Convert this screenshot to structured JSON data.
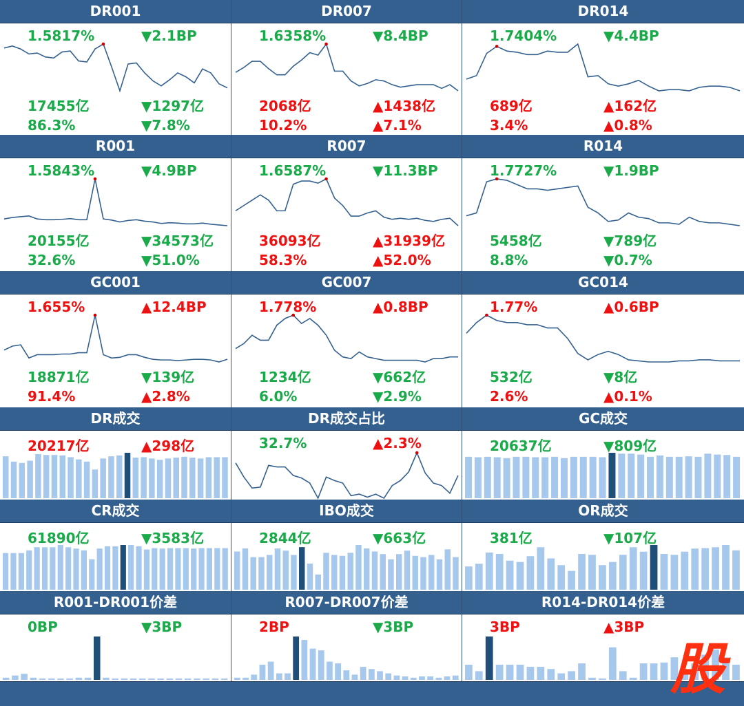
{
  "colors": {
    "up": "#ee1111",
    "down": "#1aaa4a",
    "line": "#34608f",
    "bar": "#a5c8ec",
    "bar_hl": "#1f4e79",
    "header": "#34608f",
    "peak": "#cc0000"
  },
  "panels": [
    {
      "title": "DR001",
      "rate": "1.5817%",
      "rate_dir": "down",
      "bp": "▼2.1BP",
      "bp_dir": "down",
      "vol": "17455亿",
      "vol_dir": "down",
      "vol_chg": "▼1297亿",
      "vol_chg_dir": "down",
      "share": "86.3%",
      "share_dir": "down",
      "share_chg": "▼7.8%",
      "share_chg_dir": "down",
      "chart_data": {
        "type": "line",
        "values": [
          1.98,
          2.0,
          1.97,
          1.92,
          1.93,
          1.89,
          1.88,
          1.94,
          1.95,
          1.85,
          1.84,
          1.97,
          2.02,
          1.79,
          1.55,
          1.82,
          1.83,
          1.73,
          1.65,
          1.6,
          1.66,
          1.73,
          1.69,
          1.63,
          1.77,
          1.73,
          1.62,
          1.58
        ],
        "peak_index": 12
      }
    },
    {
      "title": "DR007",
      "rate": "1.6358%",
      "rate_dir": "down",
      "bp": "▼8.4BP",
      "bp_dir": "down",
      "vol": "2068亿",
      "vol_dir": "up",
      "vol_chg": "▲1438亿",
      "vol_chg_dir": "up",
      "share": "10.2%",
      "share_dir": "up",
      "share_chg": "▲7.1%",
      "share_chg_dir": "up",
      "chart_data": {
        "type": "line",
        "values": [
          1.79,
          1.83,
          1.88,
          1.88,
          1.82,
          1.77,
          1.77,
          1.84,
          1.89,
          1.95,
          1.93,
          2.02,
          1.8,
          1.8,
          1.72,
          1.68,
          1.7,
          1.73,
          1.72,
          1.69,
          1.67,
          1.68,
          1.69,
          1.69,
          1.69,
          1.66,
          1.69,
          1.64
        ],
        "peak_index": 11
      }
    },
    {
      "title": "DR014",
      "rate": "1.7404%",
      "rate_dir": "down",
      "bp": "▼4.4BP",
      "bp_dir": "down",
      "vol": "689亿",
      "vol_dir": "up",
      "vol_chg": "▲162亿",
      "vol_chg_dir": "up",
      "share": "3.4%",
      "share_dir": "up",
      "share_chg": "▲0.8%",
      "share_chg_dir": "up",
      "chart_data": {
        "type": "line",
        "values": [
          1.92,
          1.95,
          2.14,
          2.2,
          2.16,
          2.15,
          2.13,
          2.13,
          2.16,
          2.15,
          2.15,
          2.22,
          1.94,
          1.95,
          1.88,
          1.86,
          1.88,
          1.91,
          1.86,
          1.82,
          1.83,
          1.83,
          1.82,
          1.85,
          1.86,
          1.86,
          1.85,
          1.82
        ],
        "peak_index": 3
      }
    },
    {
      "title": "R001",
      "rate": "1.5843%",
      "rate_dir": "down",
      "bp": "▼4.9BP",
      "bp_dir": "down",
      "vol": "20155亿",
      "vol_dir": "down",
      "vol_chg": "▼34573亿",
      "vol_chg_dir": "down",
      "share": "32.6%",
      "share_dir": "down",
      "share_chg": "▼51.0%",
      "share_chg_dir": "down",
      "chart_data": {
        "type": "line",
        "values": [
          1.78,
          1.82,
          1.84,
          1.86,
          1.78,
          1.76,
          1.76,
          1.77,
          1.79,
          1.76,
          1.76,
          2.85,
          1.78,
          1.75,
          1.7,
          1.74,
          1.76,
          1.72,
          1.7,
          1.66,
          1.68,
          1.67,
          1.65,
          1.65,
          1.67,
          1.64,
          1.62,
          1.6
        ],
        "peak_index": 11
      }
    },
    {
      "title": "R007",
      "rate": "1.6587%",
      "rate_dir": "down",
      "bp": "▼11.3BP",
      "bp_dir": "down",
      "vol": "36093亿",
      "vol_dir": "up",
      "vol_chg": "▲31939亿",
      "vol_chg_dir": "up",
      "share": "58.3%",
      "share_dir": "up",
      "share_chg": "▲52.0%",
      "share_chg_dir": "up",
      "chart_data": {
        "type": "line",
        "values": [
          1.8,
          1.85,
          1.9,
          1.95,
          1.9,
          1.8,
          1.8,
          2.05,
          2.08,
          2.08,
          2.06,
          2.1,
          1.92,
          1.85,
          1.75,
          1.75,
          1.78,
          1.8,
          1.74,
          1.72,
          1.73,
          1.72,
          1.73,
          1.71,
          1.7,
          1.72,
          1.73,
          1.66
        ],
        "peak_index": 11
      }
    },
    {
      "title": "R014",
      "rate": "1.7727%",
      "rate_dir": "down",
      "bp": "▼1.9BP",
      "bp_dir": "down",
      "vol": "5458亿",
      "vol_dir": "down",
      "vol_chg": "▼789亿",
      "vol_chg_dir": "down",
      "share": "8.8%",
      "share_dir": "down",
      "share_chg": "▼0.7%",
      "share_chg_dir": "down",
      "chart_data": {
        "type": "line",
        "values": [
          1.86,
          1.88,
          2.1,
          2.12,
          2.11,
          2.08,
          2.05,
          2.05,
          2.04,
          2.05,
          2.06,
          2.07,
          1.92,
          1.88,
          1.82,
          1.83,
          1.88,
          1.85,
          1.84,
          1.81,
          1.81,
          1.8,
          1.85,
          1.82,
          1.81,
          1.81,
          1.8,
          1.79
        ],
        "peak_index": 3
      }
    },
    {
      "title": "GC001",
      "rate": "1.655%",
      "rate_dir": "up",
      "bp": "▲12.4BP",
      "bp_dir": "up",
      "vol": "18871亿",
      "vol_dir": "down",
      "vol_chg": "▼139亿",
      "vol_chg_dir": "down",
      "share": "91.4%",
      "share_dir": "up",
      "share_chg": "▲2.8%",
      "share_chg_dir": "up",
      "chart_data": {
        "type": "line",
        "values": [
          1.72,
          1.78,
          1.8,
          1.6,
          1.65,
          1.65,
          1.65,
          1.66,
          1.66,
          1.68,
          1.68,
          2.25,
          1.65,
          1.6,
          1.61,
          1.65,
          1.65,
          1.61,
          1.58,
          1.57,
          1.57,
          1.56,
          1.57,
          1.58,
          1.58,
          1.57,
          1.54,
          1.58
        ],
        "peak_index": 11
      }
    },
    {
      "title": "GC007",
      "rate": "1.778%",
      "rate_dir": "up",
      "bp": "▲0.8BP",
      "bp_dir": "up",
      "vol": "1234亿",
      "vol_dir": "down",
      "vol_chg": "▼662亿",
      "vol_chg_dir": "down",
      "share": "6.0%",
      "share_dir": "down",
      "share_chg": "▼2.9%",
      "share_chg_dir": "down",
      "chart_data": {
        "type": "line",
        "values": [
          1.92,
          1.98,
          2.08,
          2.02,
          2.02,
          2.2,
          2.28,
          2.32,
          2.22,
          2.28,
          2.2,
          2.08,
          1.9,
          1.82,
          1.8,
          1.88,
          1.82,
          1.8,
          1.78,
          1.78,
          1.78,
          1.78,
          1.78,
          1.76,
          1.8,
          1.8,
          1.82,
          1.82
        ],
        "peak_index": 7
      }
    },
    {
      "title": "GC014",
      "rate": "1.77%",
      "rate_dir": "up",
      "bp": "▲0.6BP",
      "bp_dir": "up",
      "vol": "532亿",
      "vol_dir": "down",
      "vol_chg": "▼8亿",
      "vol_chg_dir": "down",
      "share": "2.6%",
      "share_dir": "up",
      "share_chg": "▲0.1%",
      "share_chg_dir": "up",
      "chart_data": {
        "type": "line",
        "values": [
          2.05,
          2.15,
          2.22,
          2.17,
          2.15,
          2.15,
          2.13,
          2.13,
          2.1,
          2.1,
          2.0,
          1.86,
          1.8,
          1.85,
          1.88,
          1.85,
          1.8,
          1.79,
          1.78,
          1.78,
          1.78,
          1.79,
          1.79,
          1.8,
          1.8,
          1.79,
          1.79,
          1.79
        ],
        "peak_index": 2
      }
    },
    {
      "title": "DR成交",
      "vol": "20217亿",
      "vol_dir": "up",
      "vol_chg": "▲298亿",
      "vol_chg_dir": "up",
      "chart_data": {
        "type": "bar",
        "values": [
          0.95,
          0.83,
          0.8,
          0.85,
          1.0,
          0.98,
          0.98,
          0.97,
          0.93,
          0.88,
          0.83,
          0.65,
          0.9,
          0.95,
          0.97,
          1.03,
          0.92,
          0.93,
          0.9,
          0.87,
          0.9,
          0.92,
          0.94,
          0.92,
          0.9,
          0.93,
          0.93,
          0.93
        ],
        "highlight_index": 15
      }
    },
    {
      "title": "DR成交占比",
      "vol": "32.7%",
      "vol_dir": "down",
      "vol_chg": "▲2.3%",
      "vol_chg_dir": "up",
      "chart_data": {
        "type": "line",
        "values": [
          1.0,
          0.72,
          0.5,
          0.52,
          0.95,
          0.92,
          0.92,
          0.75,
          0.7,
          0.6,
          0.3,
          0.72,
          0.65,
          0.6,
          0.35,
          0.38,
          0.32,
          0.38,
          0.3,
          0.55,
          0.65,
          0.82,
          1.2,
          0.8,
          0.6,
          0.55,
          0.4,
          0.75
        ],
        "peak_index": 22
      }
    },
    {
      "title": "GC成交",
      "vol": "20637亿",
      "vol_dir": "down",
      "vol_chg": "▼809亿",
      "vol_chg_dir": "down",
      "chart_data": {
        "type": "bar",
        "values": [
          0.93,
          0.92,
          0.93,
          0.92,
          0.9,
          0.93,
          0.93,
          0.92,
          0.92,
          0.93,
          0.9,
          0.93,
          0.93,
          0.93,
          0.92,
          1.02,
          1.0,
          1.0,
          0.98,
          0.93,
          0.96,
          0.93,
          0.93,
          0.94,
          0.93,
          1.0,
          0.98,
          0.97,
          0.93
        ],
        "highlight_index": 15
      }
    },
    {
      "title": "CR成交",
      "vol": "61890亿",
      "vol_dir": "down",
      "vol_chg": "▼3583亿",
      "vol_chg_dir": "down",
      "chart_data": {
        "type": "bar",
        "values": [
          0.82,
          0.82,
          0.82,
          0.88,
          0.95,
          0.95,
          0.95,
          1.0,
          0.95,
          0.92,
          0.88,
          0.68,
          0.92,
          0.97,
          0.97,
          1.0,
          1.0,
          0.97,
          0.9,
          0.93,
          0.92,
          0.93,
          0.93,
          0.93,
          0.92,
          0.93,
          0.93,
          0.93,
          0.93
        ],
        "highlight_index": 15
      }
    },
    {
      "title": "IBO成交",
      "vol": "2844亿",
      "vol_dir": "down",
      "vol_chg": "▼663亿",
      "vol_chg_dir": "down",
      "chart_data": {
        "type": "bar",
        "values": [
          0.88,
          0.95,
          0.75,
          0.75,
          0.8,
          0.95,
          0.9,
          0.8,
          0.98,
          0.6,
          0.35,
          0.85,
          0.8,
          0.78,
          0.85,
          1.03,
          0.95,
          0.88,
          0.82,
          0.7,
          0.82,
          0.9,
          0.78,
          0.75,
          0.8,
          0.7,
          0.93,
          0.75
        ],
        "highlight_index": 8
      }
    },
    {
      "title": "OR成交",
      "vol": "381亿",
      "vol_dir": "down",
      "vol_chg": "▼107亿",
      "vol_chg_dir": "down",
      "chart_data": {
        "type": "bar",
        "values": [
          0.52,
          0.58,
          0.83,
          0.8,
          0.65,
          0.62,
          0.75,
          0.95,
          0.7,
          0.55,
          0.42,
          0.8,
          0.78,
          0.55,
          0.62,
          0.78,
          0.95,
          0.85,
          1.0,
          0.8,
          0.78,
          0.85,
          0.92,
          0.93,
          0.95,
          1.0,
          0.88
        ],
        "highlight_index": 18
      }
    },
    {
      "title": "R001-DR001价差",
      "vol": "0BP",
      "vol_dir": "down",
      "vol_chg": "▼3BP",
      "vol_chg_dir": "down",
      "chart_data": {
        "type": "bar",
        "values": [
          0.05,
          0.1,
          0.14,
          0.05,
          0.03,
          0.03,
          0.03,
          0.03,
          0.05,
          0.05,
          1.0,
          0.05,
          0.03,
          0.03,
          0.03,
          0.03,
          0.03,
          0.03,
          0.03,
          0.03,
          0.03,
          0.03,
          0.03,
          0.03,
          0.03
        ],
        "highlight_index": 10
      }
    },
    {
      "title": "R007-DR007价差",
      "vol": "2BP",
      "vol_dir": "up",
      "vol_chg": "▼3BP",
      "vol_chg_dir": "down",
      "chart_data": {
        "type": "bar",
        "values": [
          0.05,
          0.05,
          0.12,
          0.35,
          0.42,
          0.15,
          0.15,
          1.0,
          0.92,
          0.72,
          0.68,
          0.42,
          0.38,
          0.22,
          0.12,
          0.3,
          0.25,
          0.2,
          0.15,
          0.1,
          0.08,
          0.05,
          0.08,
          0.08,
          0.05,
          0.08,
          0.1
        ],
        "highlight_index": 7
      }
    },
    {
      "title": "R014-DR014价差",
      "vol": "3BP",
      "vol_dir": "up",
      "vol_chg": "▲3BP",
      "vol_chg_dir": "up",
      "chart_data": {
        "type": "bar",
        "values": [
          0.35,
          0.2,
          1.0,
          0.35,
          0.35,
          0.35,
          0.3,
          0.3,
          0.25,
          0.15,
          0.2,
          0.38,
          0.05,
          0.03,
          0.75,
          0.2,
          0.05,
          0.38,
          0.38,
          0.4,
          0.52,
          0.18,
          0.38,
          0.58,
          0.7,
          0.52,
          0.35
        ],
        "highlight_index": 2
      }
    }
  ],
  "logo": {
    "name": "gu-logo-icon",
    "text": "股"
  }
}
